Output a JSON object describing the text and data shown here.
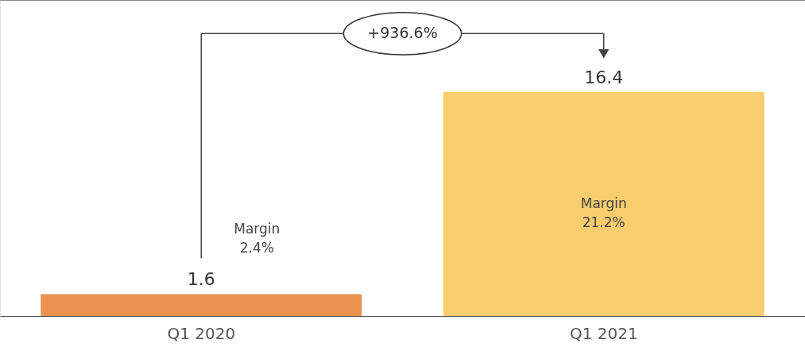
{
  "chart_data": {
    "type": "bar",
    "categories": [
      "Q1 2020",
      "Q1 2021"
    ],
    "values": [
      1.6,
      16.4
    ],
    "colors": [
      "#ed9150",
      "#f8cd6d"
    ],
    "data_labels": true,
    "grid": false,
    "annotations": [
      "+936.6%",
      "Margin\n2.4%",
      "Margin\n21.2%"
    ]
  }
}
